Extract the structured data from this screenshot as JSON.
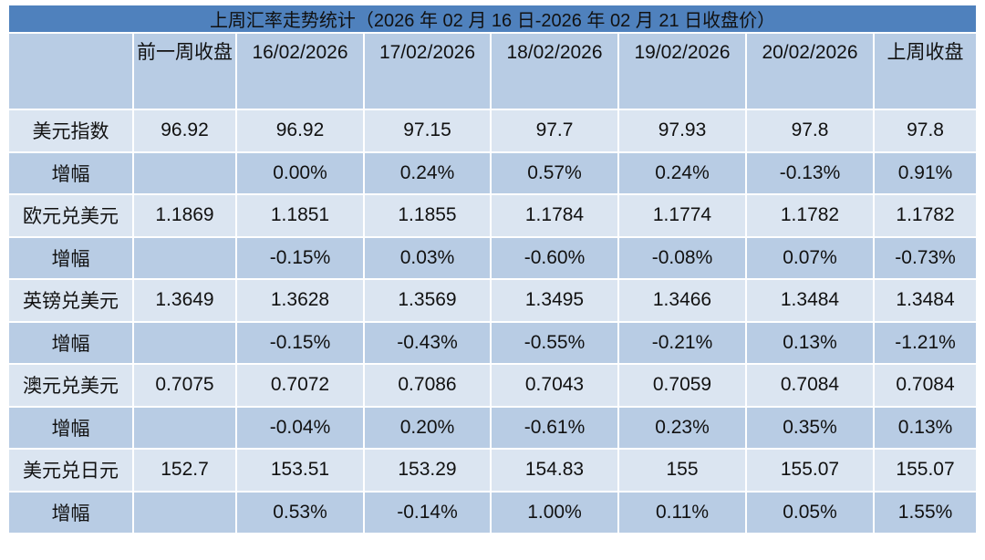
{
  "table": {
    "title": "上周汇率走势统计（2026 年 02 月 16 日-2026 年 02 月 21 日收盘价）",
    "header": [
      "前一周收盘",
      "16/02/2026",
      "17/02/2026",
      "18/02/2026",
      "19/02/2026",
      "20/02/2026",
      "上周收盘"
    ],
    "rows": [
      {
        "label": "美元指数",
        "cells": [
          "96.92",
          "96.92",
          "97.15",
          "97.7",
          "97.93",
          "97.8",
          "97.8"
        ]
      },
      {
        "label": "增幅",
        "cells": [
          null,
          "0.00%",
          "0.24%",
          "0.57%",
          "0.24%",
          "-0.13%",
          "0.91%"
        ]
      },
      {
        "label": "欧元兑美元",
        "cells": [
          "1.1869",
          "1.1851",
          "1.1855",
          "1.1784",
          "1.1774",
          "1.1782",
          "1.1782"
        ]
      },
      {
        "label": "增幅",
        "cells": [
          null,
          "-0.15%",
          "0.03%",
          "-0.60%",
          "-0.08%",
          "0.07%",
          "-0.73%"
        ]
      },
      {
        "label": "英镑兑美元",
        "cells": [
          "1.3649",
          "1.3628",
          "1.3569",
          "1.3495",
          "1.3466",
          "1.3484",
          "1.3484"
        ]
      },
      {
        "label": "增幅",
        "cells": [
          null,
          "-0.15%",
          "-0.43%",
          "-0.55%",
          "-0.21%",
          "0.13%",
          "-1.21%"
        ]
      },
      {
        "label": "澳元兑美元",
        "cells": [
          "0.7075",
          "0.7072",
          "0.7086",
          "0.7043",
          "0.7059",
          "0.7084",
          "0.7084"
        ]
      },
      {
        "label": "增幅",
        "cells": [
          null,
          "-0.04%",
          "0.20%",
          "-0.61%",
          "0.23%",
          "0.35%",
          "0.13%"
        ]
      },
      {
        "label": "美元兑日元",
        "cells": [
          "152.7",
          "153.51",
          "153.29",
          "154.83",
          "155",
          "155.07",
          "155.07"
        ]
      },
      {
        "label": "增幅",
        "cells": [
          null,
          "0.53%",
          "-0.14%",
          "1.00%",
          "0.11%",
          "0.05%",
          "1.55%"
        ]
      }
    ]
  }
}
